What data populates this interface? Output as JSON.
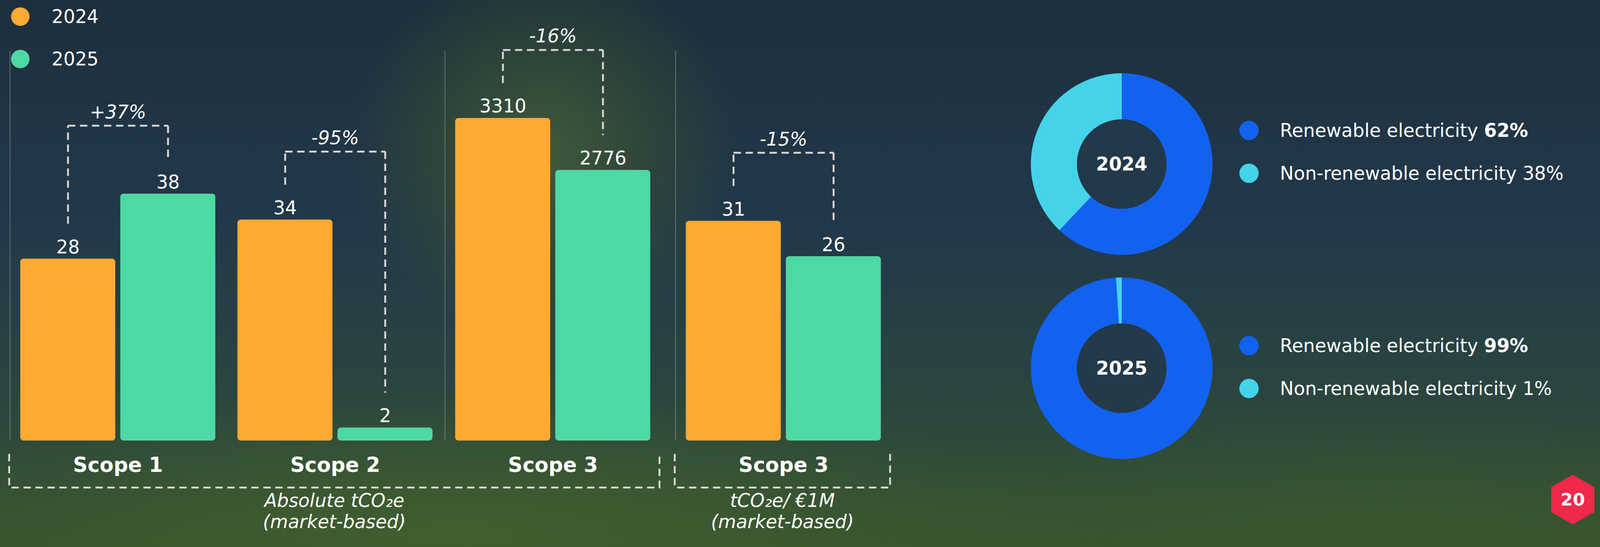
{
  "chart_data": [
    {
      "type": "bar",
      "categories": [
        "Scope 1",
        "Scope 2"
      ],
      "series": [
        {
          "name": "2024",
          "color": "#FFAA33",
          "values": [
            28,
            34
          ]
        },
        {
          "name": "2025",
          "color": "#4ED8A4",
          "values": [
            38,
            2
          ]
        }
      ],
      "change_labels": [
        "+37%",
        "-95%"
      ],
      "xlabel": "Absolute tCO₂e\n(market-based)",
      "ylim": [
        0,
        60
      ],
      "yticks": [],
      "tick_labels": "x",
      "data_labels": true,
      "legend": "top-left"
    },
    {
      "type": "bar",
      "categories": [
        "Scope 3"
      ],
      "series": [
        {
          "name": "2024",
          "color": "#FFAA33",
          "values": [
            3310
          ]
        },
        {
          "name": "2025",
          "color": "#4ED8A4",
          "values": [
            2776
          ]
        }
      ],
      "change_labels": [
        "-16%"
      ],
      "ylim": [
        0,
        4000
      ],
      "yticks": [],
      "tick_labels": "x",
      "data_labels": true
    },
    {
      "type": "bar",
      "categories": [
        "Scope 3"
      ],
      "series": [
        {
          "name": "2024",
          "color": "#FFAA33",
          "values": [
            31
          ]
        },
        {
          "name": "2025",
          "color": "#4ED8A4",
          "values": [
            26
          ]
        }
      ],
      "change_labels": [
        "-15%"
      ],
      "xlabel": "tCO₂e/ €1M\n(market-based)",
      "ylim": [
        0,
        55
      ],
      "yticks": [],
      "tick_labels": "x",
      "data_labels": true
    },
    {
      "type": "pie",
      "title": "2024",
      "categories": [
        "Renewable electricity",
        "Non-renewable electricity"
      ],
      "values": [
        62,
        38
      ],
      "value_labels": [
        "62%",
        "38%"
      ],
      "colors": [
        "#1262F0",
        "#45D3EA"
      ],
      "legend": "right"
    },
    {
      "type": "pie",
      "title": "2025",
      "categories": [
        "Renewable electricity",
        "Non-renewable electricity"
      ],
      "values": [
        99,
        1
      ],
      "value_labels": [
        "99%",
        "1%"
      ],
      "colors": [
        "#1262F0",
        "#45D3EA"
      ],
      "legend": "right"
    }
  ],
  "page_number": "20"
}
